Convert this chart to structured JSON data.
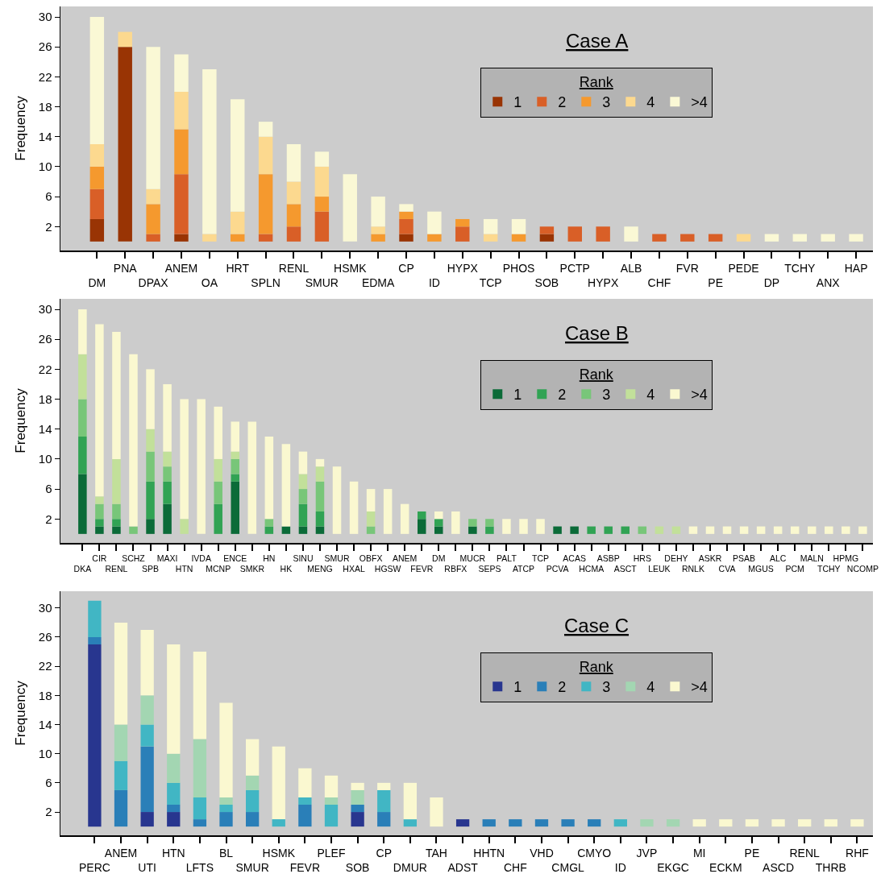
{
  "chart_data": [
    {
      "type": "bar",
      "title": "Case A",
      "ylabel": "Frequency",
      "legend_title": "Rank",
      "legend": "top right",
      "stacked": true,
      "grid": false,
      "categories": [
        "DM",
        "PNA",
        "DPAX",
        "ANEM",
        "OA",
        "HRT",
        "SPLN",
        "RENL",
        "SMUR",
        "HSMK",
        "EDMA",
        "CP",
        "ID",
        "HYPX",
        "TCP",
        "PHOS",
        "SOB",
        "PCTP",
        "HYPX",
        "ALB",
        "CHF",
        "FVR",
        "PE",
        "PEDE",
        "DP",
        "TCHY",
        "ANX",
        "HAP"
      ],
      "ylim": [
        -1.2,
        31.4
      ],
      "yticks": [
        2,
        6,
        10,
        14,
        18,
        22,
        26,
        30
      ],
      "series": [
        {
          "name": "1",
          "color": "#993404",
          "values": [
            3,
            26,
            0,
            1,
            0,
            0,
            0,
            0,
            0,
            0,
            0,
            1,
            0,
            0,
            0,
            0,
            1,
            0,
            0,
            0,
            0,
            0,
            0,
            0,
            0,
            0,
            0,
            0
          ]
        },
        {
          "name": "2",
          "color": "#d95f27",
          "values": [
            4,
            0,
            1,
            8,
            0,
            0,
            1,
            2,
            4,
            0,
            0,
            2,
            0,
            2,
            0,
            0,
            1,
            2,
            2,
            0,
            1,
            1,
            1,
            0,
            0,
            0,
            0,
            0
          ]
        },
        {
          "name": "3",
          "color": "#f5992e",
          "values": [
            3,
            0,
            4,
            6,
            0,
            1,
            8,
            3,
            2,
            0,
            1,
            1,
            1,
            1,
            0,
            1,
            0,
            0,
            0,
            0,
            0,
            0,
            0,
            0,
            0,
            0,
            0,
            0
          ]
        },
        {
          "name": "4",
          "color": "#fcd98f",
          "values": [
            3,
            2,
            2,
            5,
            1,
            3,
            5,
            3,
            4,
            0,
            1,
            0,
            0,
            0,
            1,
            0,
            0,
            0,
            0,
            0,
            0,
            0,
            0,
            1,
            0,
            0,
            0,
            0
          ]
        },
        {
          "name": ">4",
          "color": "#faf8d5",
          "values": [
            17,
            0,
            19,
            5,
            22,
            15,
            2,
            5,
            2,
            9,
            4,
            1,
            3,
            0,
            2,
            2,
            0,
            0,
            0,
            2,
            0,
            0,
            0,
            0,
            1,
            1,
            1,
            1
          ]
        }
      ]
    },
    {
      "type": "bar",
      "title": "Case B",
      "ylabel": "Frequency",
      "legend_title": "Rank",
      "legend": "top right",
      "stacked": true,
      "grid": false,
      "categories": [
        "DKA",
        "CIR",
        "RENL",
        "SCHZ",
        "SPB",
        "MAXI",
        "HTN",
        "IVDA",
        "MCNP",
        "ENCE",
        "SMKR",
        "HN",
        "HK",
        "SINU",
        "MENG",
        "SMUR",
        "HXAL",
        "OBFX",
        "HGSW",
        "ANEM",
        "FEVR",
        "DM",
        "RBFX",
        "MUCR",
        "SEPS",
        "PALT",
        "ATCP",
        "TCP",
        "PCVA",
        "ACAS",
        "HCMA",
        "ASBP",
        "ASCT",
        "HRS",
        "LEUK",
        "DEHY",
        "RNLK",
        "ASKR",
        "CVA",
        "PSAB",
        "MGUS",
        "ALC",
        "PCM",
        "MALN",
        "TCHY",
        "HPMG",
        "NCOMP"
      ],
      "ylim": [
        -1.2,
        31.4
      ],
      "yticks": [
        2,
        6,
        10,
        14,
        18,
        22,
        26,
        30
      ],
      "series": [
        {
          "name": "1",
          "color": "#0b6b38",
          "values": [
            8,
            1,
            1,
            0,
            2,
            4,
            0,
            0,
            0,
            7,
            0,
            0,
            1,
            1,
            1,
            0,
            0,
            0,
            0,
            0,
            2,
            1,
            0,
            1,
            0,
            0,
            0,
            0,
            1,
            1,
            0,
            0,
            0,
            0,
            0,
            0,
            0,
            0,
            0,
            0,
            0,
            0,
            0,
            0,
            0,
            0,
            0
          ]
        },
        {
          "name": "2",
          "color": "#31a354",
          "values": [
            5,
            1,
            1,
            0,
            5,
            3,
            0,
            0,
            4,
            1,
            0,
            1,
            0,
            3,
            2,
            0,
            0,
            0,
            0,
            0,
            1,
            1,
            0,
            0,
            1,
            0,
            0,
            0,
            0,
            0,
            1,
            1,
            1,
            0,
            0,
            0,
            0,
            0,
            0,
            0,
            0,
            0,
            0,
            0,
            0,
            0,
            0
          ]
        },
        {
          "name": "3",
          "color": "#78c679",
          "values": [
            5,
            2,
            2,
            1,
            4,
            2,
            0,
            0,
            3,
            2,
            0,
            1,
            0,
            2,
            4,
            0,
            0,
            1,
            0,
            0,
            0,
            0,
            0,
            1,
            1,
            0,
            0,
            0,
            0,
            0,
            0,
            0,
            0,
            1,
            0,
            0,
            0,
            0,
            0,
            0,
            0,
            0,
            0,
            0,
            0,
            0,
            0
          ]
        },
        {
          "name": "4",
          "color": "#c2e09a",
          "values": [
            6,
            1,
            6,
            0,
            3,
            2,
            2,
            0,
            3,
            1,
            0,
            0,
            0,
            2,
            2,
            0,
            0,
            2,
            0,
            0,
            0,
            0,
            0,
            0,
            0,
            0,
            0,
            0,
            0,
            0,
            0,
            0,
            0,
            0,
            1,
            1,
            0,
            0,
            0,
            0,
            0,
            0,
            0,
            0,
            0,
            0,
            0
          ]
        },
        {
          "name": ">4",
          "color": "#faf8d0",
          "values": [
            6,
            23,
            17,
            23,
            8,
            9,
            16,
            18,
            7,
            4,
            15,
            11,
            11,
            3,
            1,
            9,
            7,
            3,
            6,
            4,
            0,
            1,
            3,
            0,
            0,
            2,
            2,
            2,
            0,
            0,
            0,
            0,
            0,
            0,
            0,
            0,
            1,
            1,
            1,
            1,
            1,
            1,
            1,
            1,
            1,
            1,
            1
          ]
        }
      ]
    },
    {
      "type": "bar",
      "title": "Case C",
      "ylabel": "Frequency",
      "legend_title": "Rank",
      "legend": "top right",
      "stacked": true,
      "grid": false,
      "categories": [
        "PERC",
        "ANEM",
        "UTI",
        "HTN",
        "LFTS",
        "BL",
        "SMUR",
        "HSMK",
        "FEVR",
        "PLEF",
        "SOB",
        "CP",
        "DMUR",
        "TAH",
        "ADST",
        "HHTN",
        "CHF",
        "VHD",
        "CMGL",
        "CMYO",
        "ID",
        "JVP",
        "EKGC",
        "MI",
        "ECKM",
        "PE",
        "ASCD",
        "RENL",
        "THRB",
        "RHF"
      ],
      "ylim": [
        -1.2,
        32.3
      ],
      "yticks": [
        2,
        6,
        10,
        14,
        18,
        22,
        26,
        30
      ],
      "series": [
        {
          "name": "1",
          "color": "#28368f",
          "values": [
            25,
            0,
            2,
            2,
            0,
            0,
            0,
            0,
            0,
            0,
            2,
            0,
            0,
            0,
            1,
            0,
            0,
            0,
            0,
            0,
            0,
            0,
            0,
            0,
            0,
            0,
            0,
            0,
            0,
            0
          ]
        },
        {
          "name": "2",
          "color": "#2a7fb8",
          "values": [
            1,
            5,
            9,
            1,
            1,
            2,
            2,
            0,
            3,
            0,
            1,
            2,
            0,
            0,
            0,
            1,
            1,
            1,
            1,
            1,
            0,
            0,
            0,
            0,
            0,
            0,
            0,
            0,
            0,
            0
          ]
        },
        {
          "name": "3",
          "color": "#41b6c4",
          "values": [
            5,
            4,
            3,
            3,
            3,
            1,
            3,
            1,
            1,
            3,
            0,
            3,
            1,
            0,
            0,
            0,
            0,
            0,
            0,
            0,
            1,
            0,
            0,
            0,
            0,
            0,
            0,
            0,
            0,
            0
          ]
        },
        {
          "name": "4",
          "color": "#a3d6b2",
          "values": [
            0,
            5,
            4,
            4,
            8,
            1,
            2,
            0,
            0,
            1,
            2,
            0,
            0,
            0,
            0,
            0,
            0,
            0,
            0,
            0,
            0,
            1,
            1,
            0,
            0,
            0,
            0,
            0,
            0,
            0
          ]
        },
        {
          "name": ">4",
          "color": "#faf8d0",
          "values": [
            0,
            14,
            9,
            15,
            12,
            13,
            5,
            10,
            4,
            3,
            1,
            1,
            5,
            4,
            0,
            0,
            0,
            0,
            0,
            0,
            0,
            0,
            0,
            1,
            1,
            1,
            1,
            1,
            1,
            1
          ]
        }
      ]
    }
  ]
}
